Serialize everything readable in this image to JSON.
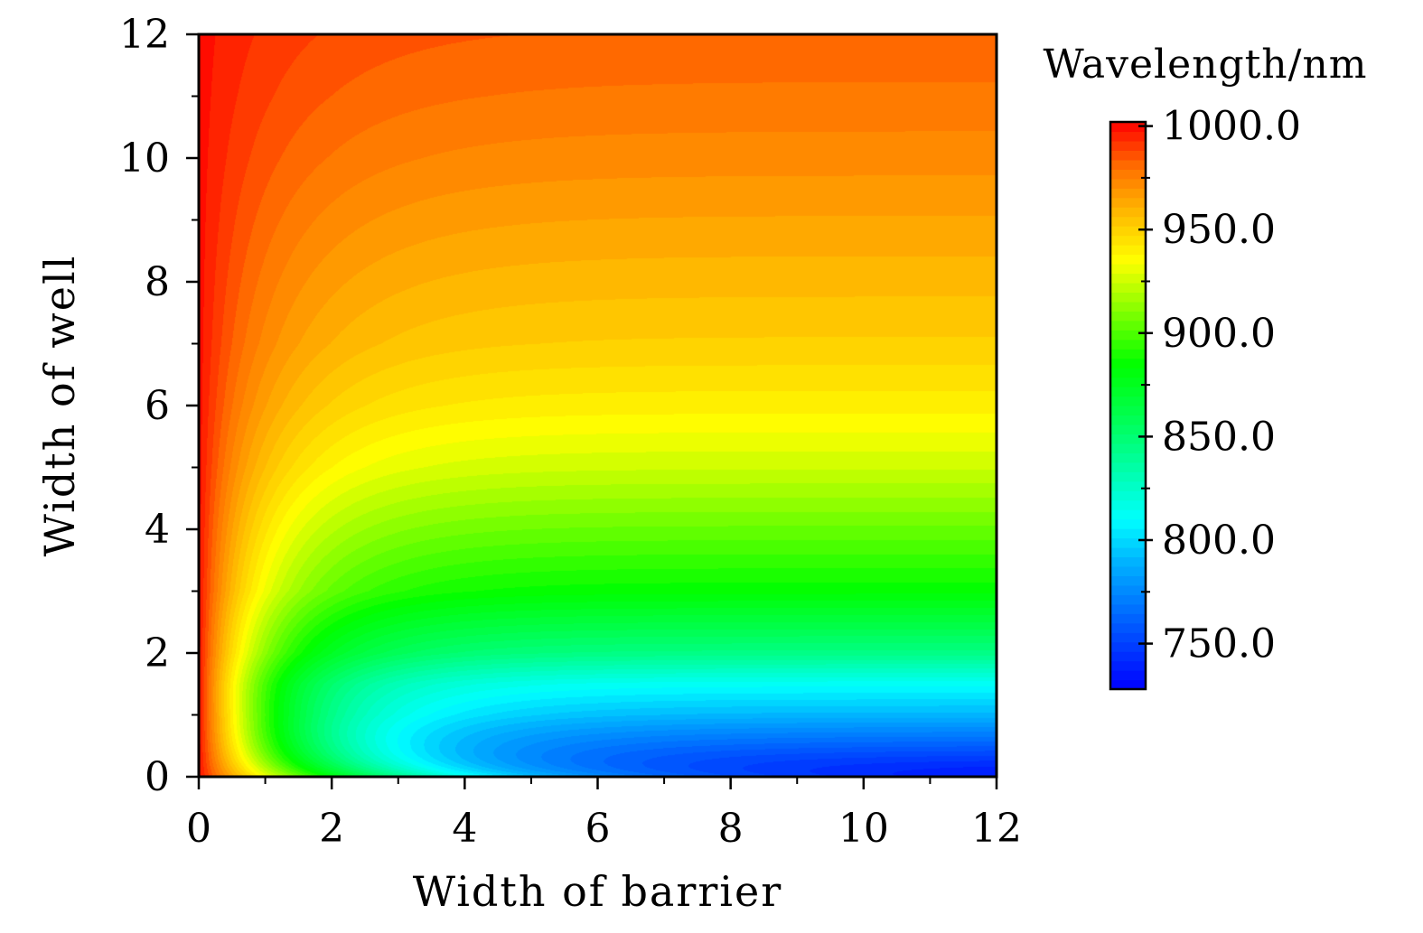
{
  "chart_data": {
    "type": "heatmap",
    "subtype": "filled-contour",
    "xlabel": "Width of barrier",
    "ylabel": "Width of well",
    "xlim": [
      0,
      12
    ],
    "ylim": [
      0,
      12
    ],
    "xticks": [
      "0",
      "2",
      "4",
      "6",
      "8",
      "10",
      "12"
    ],
    "yticks": [
      "0",
      "2",
      "4",
      "6",
      "8",
      "10",
      "12"
    ],
    "x_tick_values": [
      0,
      2,
      4,
      6,
      8,
      10,
      12
    ],
    "y_tick_values": [
      0,
      2,
      4,
      6,
      8,
      10,
      12
    ],
    "grid": false,
    "colorbar": {
      "title": "Wavelength/nm",
      "range": [
        728,
        1002
      ],
      "tick_values": [
        1000,
        950,
        900,
        850,
        800,
        750
      ],
      "tick_labels": [
        "1000.0",
        "950.0",
        "900.0",
        "850.0",
        "800.0",
        "750.0"
      ],
      "colormap": [
        {
          "value": 728,
          "color": "#0000ff"
        },
        {
          "value": 790,
          "color": "#00b4ff"
        },
        {
          "value": 810,
          "color": "#00ffff"
        },
        {
          "value": 860,
          "color": "#00ff50"
        },
        {
          "value": 885,
          "color": "#00ff00"
        },
        {
          "value": 935,
          "color": "#ffff00"
        },
        {
          "value": 960,
          "color": "#ffb400"
        },
        {
          "value": 980,
          "color": "#ff7000"
        },
        {
          "value": 1002,
          "color": "#ff0000"
        }
      ]
    },
    "wavelength_at_wide_barrier": [
      {
        "well": 0,
        "wavelength": 728
      },
      {
        "well": 0.5,
        "wavelength": 760
      },
      {
        "well": 1,
        "wavelength": 790
      },
      {
        "well": 1.5,
        "wavelength": 812
      },
      {
        "well": 2,
        "wavelength": 845
      },
      {
        "well": 3,
        "wavelength": 885
      },
      {
        "well": 4,
        "wavelength": 905
      },
      {
        "well": 5,
        "wavelength": 925
      },
      {
        "well": 6,
        "wavelength": 940
      },
      {
        "well": 7,
        "wavelength": 951
      },
      {
        "well": 8,
        "wavelength": 958
      },
      {
        "well": 9,
        "wavelength": 965
      },
      {
        "well": 10,
        "wavelength": 972
      },
      {
        "well": 11,
        "wavelength": 978
      },
      {
        "well": 12,
        "wavelength": 983
      }
    ],
    "wavelength_at_zero_barrier": 1000
  }
}
